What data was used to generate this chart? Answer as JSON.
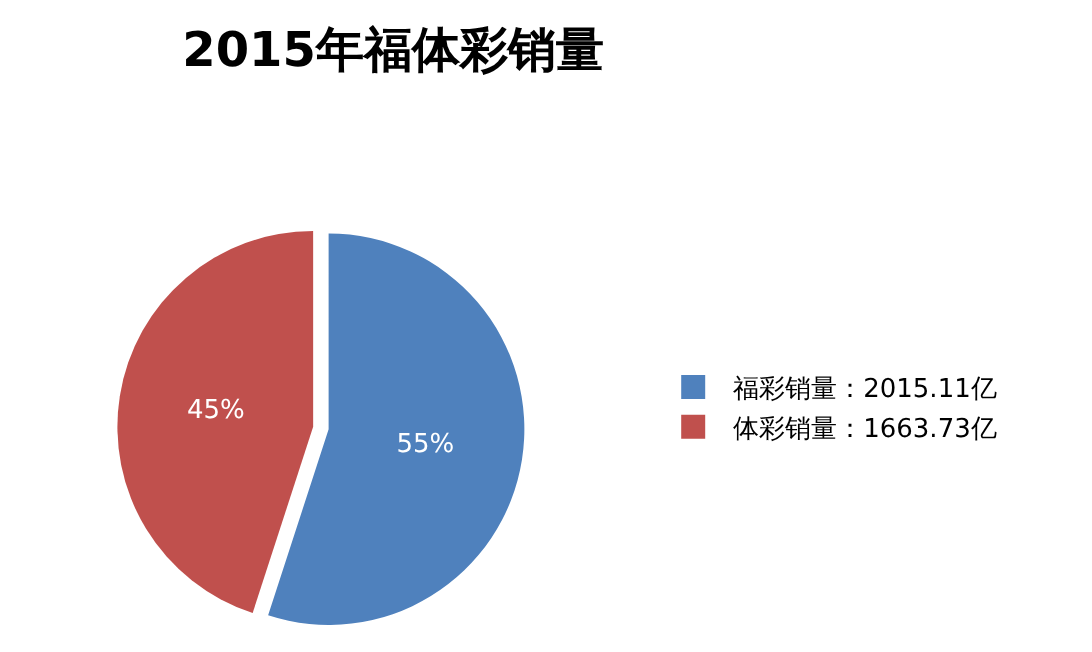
{
  "chart_data": {
    "type": "pie",
    "title": "2015年福体彩销量",
    "categories": [
      "福彩销量：2015.11亿",
      "体彩销量：1663.73亿"
    ],
    "values": [
      55,
      45
    ],
    "value_labels": [
      "55%",
      "45%"
    ],
    "colors": [
      "#4f81bd",
      "#c0504d"
    ],
    "legend": "right"
  }
}
